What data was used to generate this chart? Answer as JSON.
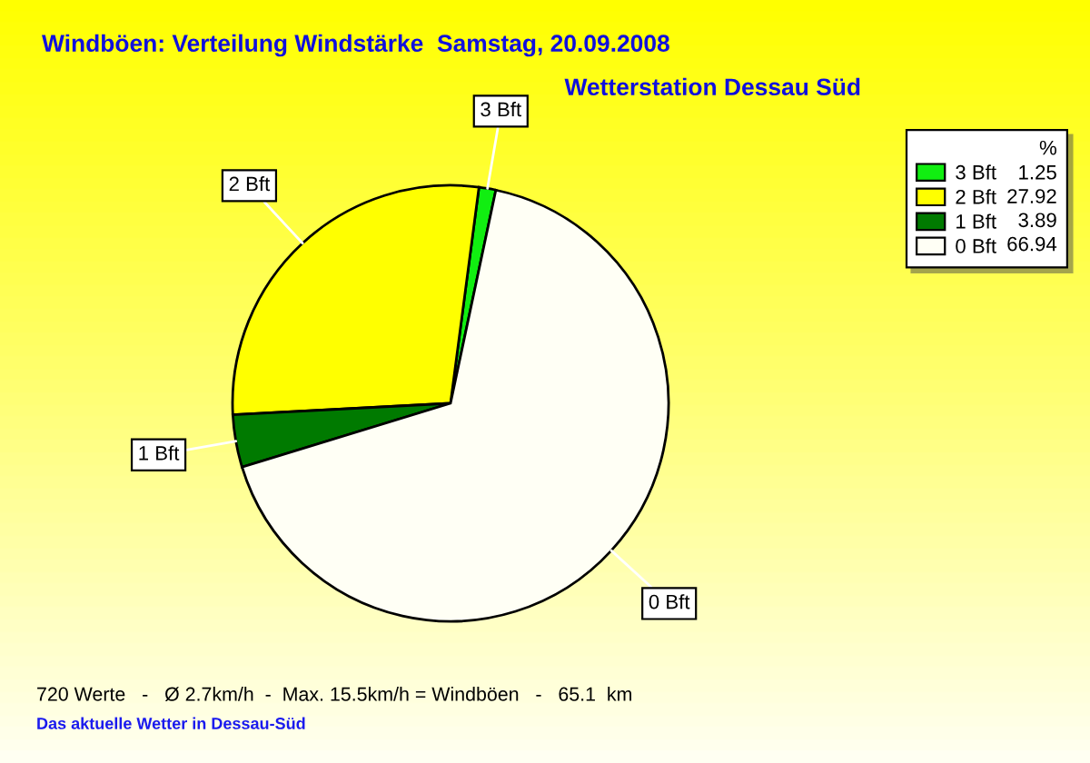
{
  "chart_data": {
    "type": "pie",
    "title": "Windböen: Verteilung Windstärke  Samstag, 20.09.2008",
    "subtitle": "Wetterstation Dessau Süd",
    "categories": [
      "3 Bft",
      "2 Bft",
      "1 Bft",
      "0 Bft"
    ],
    "values": [
      1.25,
      27.92,
      3.89,
      66.94
    ],
    "colors": [
      "#11ee11",
      "#ffff00",
      "#007a00",
      "#fffff5"
    ],
    "legend_title": "%",
    "legend": "top right",
    "data_labels": true,
    "annotations": [
      "720 Werte   -   Ø 2.7km/h  -  Max. 15.5km/h = Windböen   -   65.1  km",
      "Das aktuelle Wetter in Dessau-Süd"
    ]
  }
}
